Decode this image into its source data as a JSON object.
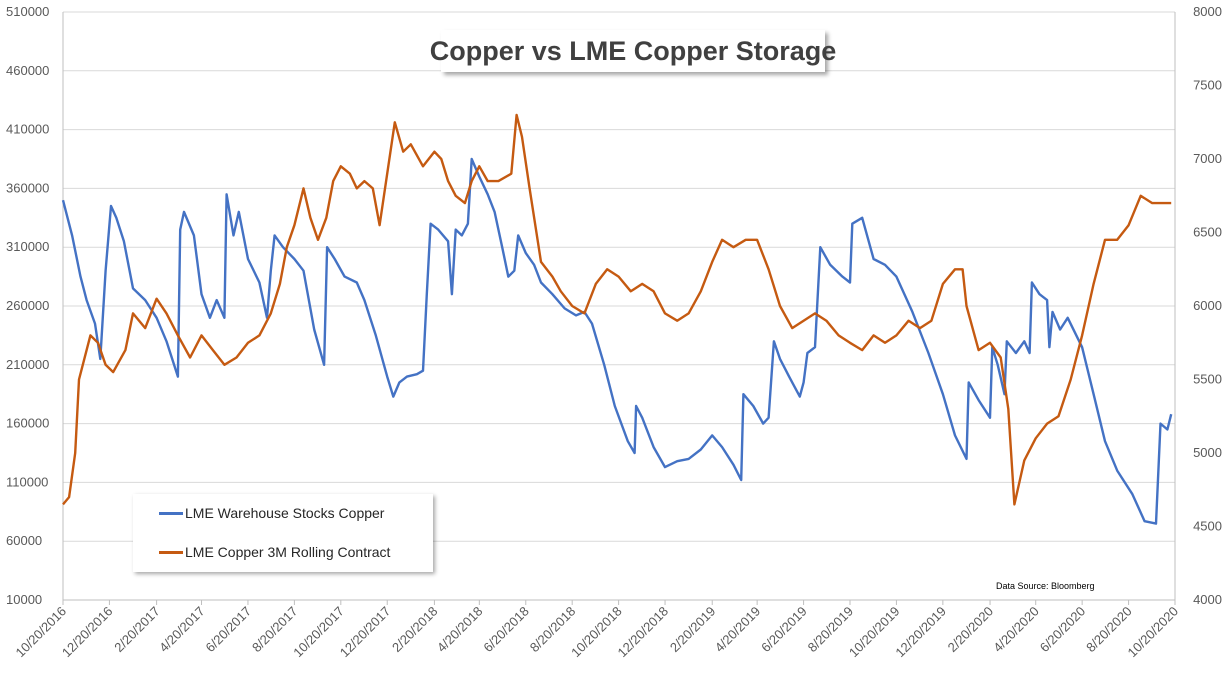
{
  "chart_data": {
    "type": "line",
    "title": "Copper vs LME Copper Storage",
    "source_note": "Data Source: Bloomberg",
    "legend_placement": "bottom-left",
    "grid": {
      "horizontal": true,
      "vertical": false
    },
    "x_range": [
      "2016-10-20",
      "2020-10-20"
    ],
    "x_ticks": [
      "10/20/2016",
      "12/20/2016",
      "2/20/2017",
      "4/20/2017",
      "6/20/2017",
      "8/20/2017",
      "10/20/2017",
      "12/20/2017",
      "2/20/2018",
      "4/20/2018",
      "6/20/2018",
      "8/20/2018",
      "10/20/2018",
      "12/20/2018",
      "2/20/2019",
      "4/20/2019",
      "6/20/2019",
      "8/20/2019",
      "10/20/2019",
      "12/20/2019",
      "2/20/2020",
      "4/20/2020",
      "6/20/2020",
      "8/20/2020",
      "10/20/2020"
    ],
    "y_left": {
      "min": 10000,
      "max": 510000,
      "ticks": [
        "10000",
        "60000",
        "110000",
        "160000",
        "210000",
        "260000",
        "310000",
        "360000",
        "410000",
        "460000",
        "510000"
      ]
    },
    "y_right": {
      "min": 4000,
      "max": 8000,
      "ticks": [
        "4000",
        "4500",
        "5000",
        "5500",
        "6000",
        "6500",
        "7000",
        "7500",
        "8000"
      ]
    },
    "series": [
      {
        "name": "LME Warehouse Stocks Copper",
        "axis": "left",
        "color": "#4472C4",
        "points": [
          [
            "2016-10-20",
            350000
          ],
          [
            "2016-11-01",
            320000
          ],
          [
            "2016-11-12",
            285000
          ],
          [
            "2016-11-20",
            265000
          ],
          [
            "2016-12-01",
            245000
          ],
          [
            "2016-12-08",
            215000
          ],
          [
            "2016-12-15",
            290000
          ],
          [
            "2016-12-22",
            345000
          ],
          [
            "2016-12-29",
            335000
          ],
          [
            "2017-01-08",
            315000
          ],
          [
            "2017-01-20",
            275000
          ],
          [
            "2017-02-05",
            265000
          ],
          [
            "2017-02-20",
            250000
          ],
          [
            "2017-03-05",
            230000
          ],
          [
            "2017-03-20",
            200000
          ],
          [
            "2017-03-23",
            325000
          ],
          [
            "2017-03-28",
            340000
          ],
          [
            "2017-04-10",
            320000
          ],
          [
            "2017-04-20",
            270000
          ],
          [
            "2017-05-01",
            250000
          ],
          [
            "2017-05-10",
            265000
          ],
          [
            "2017-05-20",
            250000
          ],
          [
            "2017-05-23",
            355000
          ],
          [
            "2017-06-01",
            320000
          ],
          [
            "2017-06-08",
            340000
          ],
          [
            "2017-06-20",
            300000
          ],
          [
            "2017-07-05",
            280000
          ],
          [
            "2017-07-15",
            250000
          ],
          [
            "2017-07-20",
            290000
          ],
          [
            "2017-07-25",
            320000
          ],
          [
            "2017-08-05",
            310000
          ],
          [
            "2017-08-20",
            300000
          ],
          [
            "2017-09-01",
            290000
          ],
          [
            "2017-09-15",
            240000
          ],
          [
            "2017-09-28",
            210000
          ],
          [
            "2017-10-02",
            310000
          ],
          [
            "2017-10-12",
            300000
          ],
          [
            "2017-10-25",
            285000
          ],
          [
            "2017-11-10",
            280000
          ],
          [
            "2017-11-20",
            265000
          ],
          [
            "2017-12-05",
            235000
          ],
          [
            "2017-12-20",
            200000
          ],
          [
            "2017-12-28",
            183000
          ],
          [
            "2018-01-05",
            195000
          ],
          [
            "2018-01-15",
            200000
          ],
          [
            "2018-01-28",
            202000
          ],
          [
            "2018-02-05",
            205000
          ],
          [
            "2018-02-10",
            270000
          ],
          [
            "2018-02-15",
            330000
          ],
          [
            "2018-02-25",
            325000
          ],
          [
            "2018-03-10",
            315000
          ],
          [
            "2018-03-15",
            270000
          ],
          [
            "2018-03-20",
            325000
          ],
          [
            "2018-03-28",
            320000
          ],
          [
            "2018-04-05",
            330000
          ],
          [
            "2018-04-10",
            385000
          ],
          [
            "2018-04-20",
            370000
          ],
          [
            "2018-05-01",
            355000
          ],
          [
            "2018-05-10",
            340000
          ],
          [
            "2018-05-20",
            310000
          ],
          [
            "2018-05-28",
            285000
          ],
          [
            "2018-06-05",
            290000
          ],
          [
            "2018-06-10",
            320000
          ],
          [
            "2018-06-20",
            305000
          ],
          [
            "2018-07-01",
            295000
          ],
          [
            "2018-07-10",
            280000
          ],
          [
            "2018-07-25",
            270000
          ],
          [
            "2018-08-10",
            258000
          ],
          [
            "2018-08-25",
            252000
          ],
          [
            "2018-09-05",
            255000
          ],
          [
            "2018-09-15",
            245000
          ],
          [
            "2018-10-01",
            210000
          ],
          [
            "2018-10-15",
            175000
          ],
          [
            "2018-11-01",
            145000
          ],
          [
            "2018-11-10",
            135000
          ],
          [
            "2018-11-12",
            175000
          ],
          [
            "2018-11-20",
            165000
          ],
          [
            "2018-12-05",
            140000
          ],
          [
            "2018-12-20",
            123000
          ],
          [
            "2019-01-05",
            128000
          ],
          [
            "2019-01-20",
            130000
          ],
          [
            "2019-02-05",
            138000
          ],
          [
            "2019-02-20",
            150000
          ],
          [
            "2019-03-05",
            140000
          ],
          [
            "2019-03-20",
            125000
          ],
          [
            "2019-03-30",
            112000
          ],
          [
            "2019-04-02",
            185000
          ],
          [
            "2019-04-15",
            175000
          ],
          [
            "2019-04-28",
            160000
          ],
          [
            "2019-05-05",
            165000
          ],
          [
            "2019-05-12",
            230000
          ],
          [
            "2019-05-20",
            215000
          ],
          [
            "2019-06-01",
            200000
          ],
          [
            "2019-06-15",
            183000
          ],
          [
            "2019-06-20",
            195000
          ],
          [
            "2019-06-25",
            220000
          ],
          [
            "2019-07-05",
            225000
          ],
          [
            "2019-07-12",
            310000
          ],
          [
            "2019-07-25",
            295000
          ],
          [
            "2019-08-10",
            285000
          ],
          [
            "2019-08-20",
            280000
          ],
          [
            "2019-08-23",
            330000
          ],
          [
            "2019-09-05",
            335000
          ],
          [
            "2019-09-20",
            300000
          ],
          [
            "2019-10-05",
            295000
          ],
          [
            "2019-10-20",
            285000
          ],
          [
            "2019-11-10",
            255000
          ],
          [
            "2019-12-01",
            220000
          ],
          [
            "2019-12-20",
            185000
          ],
          [
            "2020-01-05",
            150000
          ],
          [
            "2020-01-20",
            130000
          ],
          [
            "2020-01-23",
            195000
          ],
          [
            "2020-02-05",
            180000
          ],
          [
            "2020-02-20",
            165000
          ],
          [
            "2020-02-23",
            225000
          ],
          [
            "2020-03-01",
            210000
          ],
          [
            "2020-03-10",
            185000
          ],
          [
            "2020-03-13",
            230000
          ],
          [
            "2020-03-25",
            220000
          ],
          [
            "2020-04-05",
            230000
          ],
          [
            "2020-04-12",
            220000
          ],
          [
            "2020-04-15",
            280000
          ],
          [
            "2020-04-25",
            270000
          ],
          [
            "2020-05-05",
            265000
          ],
          [
            "2020-05-08",
            225000
          ],
          [
            "2020-05-12",
            255000
          ],
          [
            "2020-05-22",
            240000
          ],
          [
            "2020-06-01",
            250000
          ],
          [
            "2020-06-20",
            225000
          ],
          [
            "2020-07-05",
            185000
          ],
          [
            "2020-07-20",
            145000
          ],
          [
            "2020-08-05",
            120000
          ],
          [
            "2020-08-25",
            100000
          ],
          [
            "2020-09-10",
            77000
          ],
          [
            "2020-09-25",
            75000
          ],
          [
            "2020-10-01",
            160000
          ],
          [
            "2020-10-10",
            155000
          ],
          [
            "2020-10-15",
            168000
          ]
        ]
      },
      {
        "name": "LME Copper 3M Rolling Contract",
        "axis": "right",
        "color": "#C55A11",
        "points": [
          [
            "2016-10-20",
            4650
          ],
          [
            "2016-10-28",
            4700
          ],
          [
            "2016-11-05",
            5000
          ],
          [
            "2016-11-10",
            5500
          ],
          [
            "2016-11-15",
            5600
          ],
          [
            "2016-11-25",
            5800
          ],
          [
            "2016-12-05",
            5750
          ],
          [
            "2016-12-15",
            5600
          ],
          [
            "2016-12-25",
            5550
          ],
          [
            "2017-01-10",
            5700
          ],
          [
            "2017-01-20",
            5950
          ],
          [
            "2017-02-05",
            5850
          ],
          [
            "2017-02-20",
            6050
          ],
          [
            "2017-03-05",
            5950
          ],
          [
            "2017-03-20",
            5800
          ],
          [
            "2017-04-05",
            5650
          ],
          [
            "2017-04-20",
            5800
          ],
          [
            "2017-05-05",
            5700
          ],
          [
            "2017-05-20",
            5600
          ],
          [
            "2017-06-05",
            5650
          ],
          [
            "2017-06-20",
            5750
          ],
          [
            "2017-07-05",
            5800
          ],
          [
            "2017-07-20",
            5950
          ],
          [
            "2017-08-01",
            6150
          ],
          [
            "2017-08-10",
            6400
          ],
          [
            "2017-08-20",
            6550
          ],
          [
            "2017-09-01",
            6800
          ],
          [
            "2017-09-10",
            6600
          ],
          [
            "2017-09-20",
            6450
          ],
          [
            "2017-10-01",
            6600
          ],
          [
            "2017-10-10",
            6850
          ],
          [
            "2017-10-20",
            6950
          ],
          [
            "2017-11-01",
            6900
          ],
          [
            "2017-11-10",
            6800
          ],
          [
            "2017-11-20",
            6850
          ],
          [
            "2017-12-01",
            6800
          ],
          [
            "2017-12-10",
            6550
          ],
          [
            "2017-12-20",
            6900
          ],
          [
            "2017-12-30",
            7250
          ],
          [
            "2018-01-10",
            7050
          ],
          [
            "2018-01-20",
            7100
          ],
          [
            "2018-02-05",
            6950
          ],
          [
            "2018-02-20",
            7050
          ],
          [
            "2018-03-01",
            7000
          ],
          [
            "2018-03-10",
            6850
          ],
          [
            "2018-03-20",
            6750
          ],
          [
            "2018-04-01",
            6700
          ],
          [
            "2018-04-10",
            6850
          ],
          [
            "2018-04-20",
            6950
          ],
          [
            "2018-05-01",
            6850
          ],
          [
            "2018-05-15",
            6850
          ],
          [
            "2018-06-01",
            6900
          ],
          [
            "2018-06-08",
            7300
          ],
          [
            "2018-06-15",
            7150
          ],
          [
            "2018-06-25",
            6800
          ],
          [
            "2018-07-10",
            6300
          ],
          [
            "2018-07-25",
            6200
          ],
          [
            "2018-08-05",
            6100
          ],
          [
            "2018-08-20",
            6000
          ],
          [
            "2018-09-05",
            5950
          ],
          [
            "2018-09-20",
            6150
          ],
          [
            "2018-10-05",
            6250
          ],
          [
            "2018-10-20",
            6200
          ],
          [
            "2018-11-05",
            6100
          ],
          [
            "2018-11-20",
            6150
          ],
          [
            "2018-12-05",
            6100
          ],
          [
            "2018-12-20",
            5950
          ],
          [
            "2019-01-05",
            5900
          ],
          [
            "2019-01-20",
            5950
          ],
          [
            "2019-02-05",
            6100
          ],
          [
            "2019-02-20",
            6300
          ],
          [
            "2019-03-05",
            6450
          ],
          [
            "2019-03-20",
            6400
          ],
          [
            "2019-04-05",
            6450
          ],
          [
            "2019-04-20",
            6450
          ],
          [
            "2019-05-05",
            6250
          ],
          [
            "2019-05-20",
            6000
          ],
          [
            "2019-06-05",
            5850
          ],
          [
            "2019-06-20",
            5900
          ],
          [
            "2019-07-05",
            5950
          ],
          [
            "2019-07-20",
            5900
          ],
          [
            "2019-08-05",
            5800
          ],
          [
            "2019-08-20",
            5750
          ],
          [
            "2019-09-05",
            5700
          ],
          [
            "2019-09-20",
            5800
          ],
          [
            "2019-10-05",
            5750
          ],
          [
            "2019-10-20",
            5800
          ],
          [
            "2019-11-05",
            5900
          ],
          [
            "2019-11-20",
            5850
          ],
          [
            "2019-12-05",
            5900
          ],
          [
            "2019-12-20",
            6150
          ],
          [
            "2020-01-05",
            6250
          ],
          [
            "2020-01-15",
            6250
          ],
          [
            "2020-01-20",
            6000
          ],
          [
            "2020-02-05",
            5700
          ],
          [
            "2020-02-20",
            5750
          ],
          [
            "2020-03-05",
            5650
          ],
          [
            "2020-03-15",
            5300
          ],
          [
            "2020-03-23",
            4650
          ],
          [
            "2020-04-05",
            4950
          ],
          [
            "2020-04-20",
            5100
          ],
          [
            "2020-05-05",
            5200
          ],
          [
            "2020-05-20",
            5250
          ],
          [
            "2020-06-05",
            5500
          ],
          [
            "2020-06-20",
            5800
          ],
          [
            "2020-07-05",
            6150
          ],
          [
            "2020-07-20",
            6450
          ],
          [
            "2020-08-05",
            6450
          ],
          [
            "2020-08-20",
            6550
          ],
          [
            "2020-09-05",
            6750
          ],
          [
            "2020-09-20",
            6700
          ],
          [
            "2020-10-05",
            6700
          ],
          [
            "2020-10-15",
            6700
          ]
        ]
      }
    ]
  }
}
